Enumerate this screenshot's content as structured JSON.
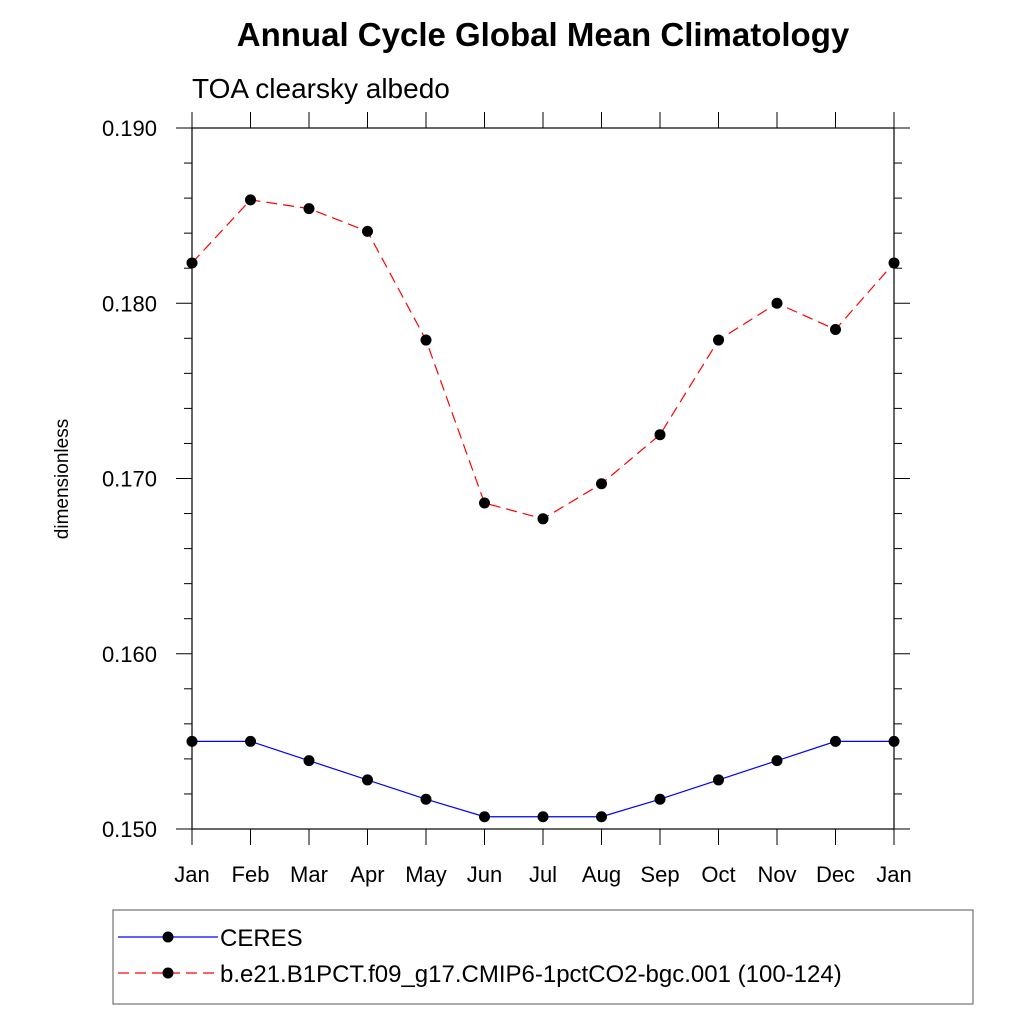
{
  "chart_data": {
    "type": "line",
    "title": "Annual Cycle Global Mean Climatology",
    "subtitle": "TOA clearsky albedo",
    "xlabel": "",
    "ylabel": "dimensionless",
    "categories": [
      "Jan",
      "Feb",
      "Mar",
      "Apr",
      "May",
      "Jun",
      "Jul",
      "Aug",
      "Sep",
      "Oct",
      "Nov",
      "Dec",
      "Jan"
    ],
    "ylim": [
      0.15,
      0.19
    ],
    "yticks": [
      0.15,
      0.16,
      0.17,
      0.18,
      0.19
    ],
    "ytick_labels": [
      "0.150",
      "0.160",
      "0.170",
      "0.180",
      "0.190"
    ],
    "grid": false,
    "legend_position": "bottom",
    "series": [
      {
        "name": "CERES",
        "color": "#0000ff",
        "dash": "solid",
        "values": [
          0.155,
          0.155,
          0.1539,
          0.1528,
          0.1517,
          0.1507,
          0.1507,
          0.1507,
          0.1517,
          0.1528,
          0.1539,
          0.155,
          0.155
        ]
      },
      {
        "name": "b.e21.B1PCT.f09_g17.CMIP6-1pctCO2-bgc.001 (100-124)",
        "color": "#ff0000",
        "dash": "dashed",
        "values": [
          0.1823,
          0.1859,
          0.1854,
          0.1841,
          0.1779,
          0.1686,
          0.1677,
          0.1697,
          0.1725,
          0.1779,
          0.18,
          0.1785,
          0.1823
        ]
      }
    ]
  }
}
